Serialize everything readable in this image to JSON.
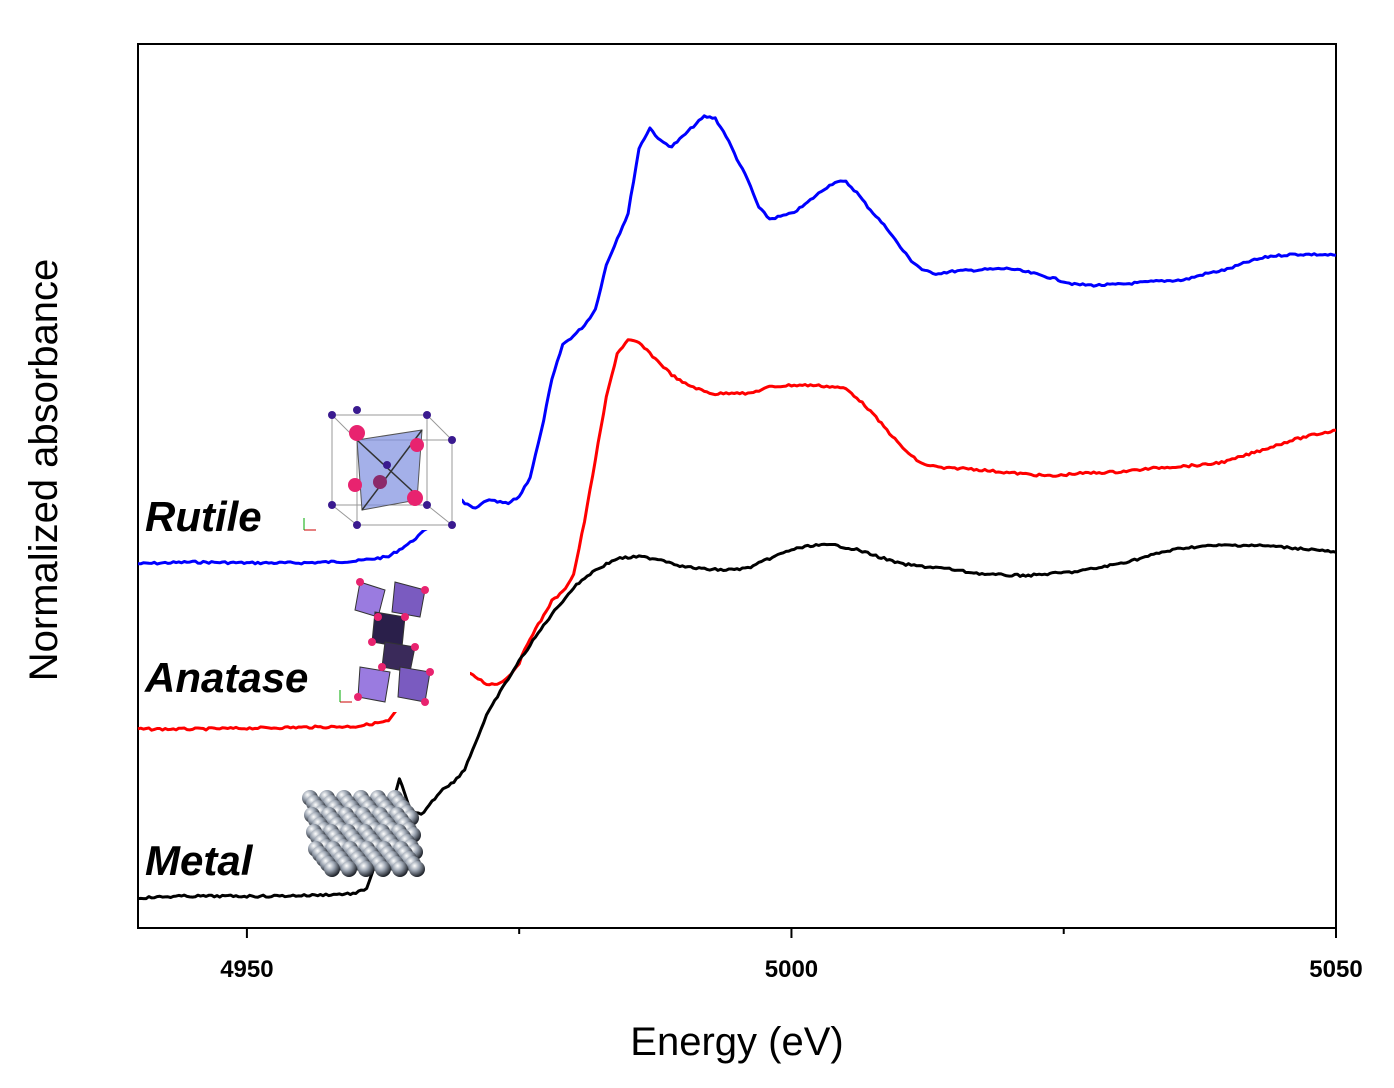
{
  "chart_data": {
    "type": "line",
    "xlabel": "Energy (eV)",
    "ylabel": "Normalized absorbance",
    "xlim": [
      4940,
      5050
    ],
    "ylim": [
      0,
      1
    ],
    "x_ticks_major": [
      4950,
      5000,
      5050
    ],
    "x_tick_labels": [
      "4950",
      "5000",
      "5050"
    ],
    "x_ticks_minor": [
      4975,
      5025
    ],
    "y_ticks": [],
    "grid": false,
    "series": [
      {
        "name": "Rutile",
        "color": "#0000ff",
        "points": [
          [
            4940,
            0.412
          ],
          [
            4945,
            0.414
          ],
          [
            4950,
            0.413
          ],
          [
            4955,
            0.413
          ],
          [
            4960,
            0.415
          ],
          [
            4963,
            0.42
          ],
          [
            4965,
            0.436
          ],
          [
            4966,
            0.446
          ],
          [
            4968,
            0.47
          ],
          [
            4969,
            0.492
          ],
          [
            4970,
            0.48
          ],
          [
            4971,
            0.474
          ],
          [
            4972,
            0.484
          ],
          [
            4974,
            0.48
          ],
          [
            4975,
            0.488
          ],
          [
            4976,
            0.51
          ],
          [
            4977,
            0.56
          ],
          [
            4978,
            0.62
          ],
          [
            4979,
            0.66
          ],
          [
            4980,
            0.67
          ],
          [
            4981,
            0.682
          ],
          [
            4982,
            0.7
          ],
          [
            4983,
            0.75
          ],
          [
            4984,
            0.78
          ],
          [
            4985,
            0.808
          ],
          [
            4986,
            0.882
          ],
          [
            4987,
            0.905
          ],
          [
            4988,
            0.89
          ],
          [
            4989,
            0.884
          ],
          [
            4990,
            0.895
          ],
          [
            4991,
            0.907
          ],
          [
            4992,
            0.918
          ],
          [
            4993,
            0.916
          ],
          [
            4994,
            0.896
          ],
          [
            4995,
            0.87
          ],
          [
            4996,
            0.846
          ],
          [
            4997,
            0.815
          ],
          [
            4998,
            0.802
          ],
          [
            4999,
            0.805
          ],
          [
            5000,
            0.808
          ],
          [
            5001,
            0.816
          ],
          [
            5002,
            0.826
          ],
          [
            5003,
            0.836
          ],
          [
            5004,
            0.844
          ],
          [
            5005,
            0.844
          ],
          [
            5006,
            0.832
          ],
          [
            5007,
            0.816
          ],
          [
            5008,
            0.802
          ],
          [
            5009,
            0.788
          ],
          [
            5010,
            0.77
          ],
          [
            5011,
            0.755
          ],
          [
            5012,
            0.745
          ],
          [
            5013,
            0.74
          ],
          [
            5015,
            0.743
          ],
          [
            5018,
            0.745
          ],
          [
            5020,
            0.746
          ],
          [
            5022,
            0.741
          ],
          [
            5024,
            0.735
          ],
          [
            5026,
            0.728
          ],
          [
            5028,
            0.727
          ],
          [
            5030,
            0.728
          ],
          [
            5034,
            0.732
          ],
          [
            5036,
            0.733
          ],
          [
            5038,
            0.74
          ],
          [
            5040,
            0.745
          ],
          [
            5042,
            0.754
          ],
          [
            5044,
            0.76
          ],
          [
            5046,
            0.762
          ],
          [
            5048,
            0.762
          ],
          [
            5050,
            0.761
          ]
        ]
      },
      {
        "name": "Anatase",
        "color": "#ff0000",
        "points": [
          [
            4940,
            0.225
          ],
          [
            4945,
            0.225
          ],
          [
            4950,
            0.226
          ],
          [
            4955,
            0.227
          ],
          [
            4960,
            0.228
          ],
          [
            4963,
            0.234
          ],
          [
            4964,
            0.25
          ],
          [
            4965,
            0.258
          ],
          [
            4966,
            0.254
          ],
          [
            4967,
            0.266
          ],
          [
            4968,
            0.282
          ],
          [
            4969,
            0.283
          ],
          [
            4970,
            0.29
          ],
          [
            4971,
            0.284
          ],
          [
            4972,
            0.276
          ],
          [
            4973,
            0.276
          ],
          [
            4974,
            0.284
          ],
          [
            4975,
            0.3
          ],
          [
            4976,
            0.328
          ],
          [
            4977,
            0.348
          ],
          [
            4978,
            0.37
          ],
          [
            4979,
            0.38
          ],
          [
            4980,
            0.4
          ],
          [
            4981,
            0.46
          ],
          [
            4982,
            0.53
          ],
          [
            4983,
            0.6
          ],
          [
            4984,
            0.65
          ],
          [
            4985,
            0.665
          ],
          [
            4986,
            0.662
          ],
          [
            4987,
            0.65
          ],
          [
            4988,
            0.638
          ],
          [
            4989,
            0.626
          ],
          [
            4990,
            0.617
          ],
          [
            4991,
            0.612
          ],
          [
            4992,
            0.607
          ],
          [
            4993,
            0.604
          ],
          [
            4994,
            0.605
          ],
          [
            4995,
            0.606
          ],
          [
            4996,
            0.604
          ],
          [
            4997,
            0.608
          ],
          [
            4998,
            0.612
          ],
          [
            5000,
            0.614
          ],
          [
            5002,
            0.614
          ],
          [
            5004,
            0.612
          ],
          [
            5005,
            0.61
          ],
          [
            5006,
            0.6
          ],
          [
            5007,
            0.588
          ],
          [
            5008,
            0.574
          ],
          [
            5009,
            0.56
          ],
          [
            5010,
            0.546
          ],
          [
            5011,
            0.534
          ],
          [
            5012,
            0.525
          ],
          [
            5014,
            0.52
          ],
          [
            5016,
            0.52
          ],
          [
            5020,
            0.515
          ],
          [
            5024,
            0.511
          ],
          [
            5026,
            0.514
          ],
          [
            5030,
            0.516
          ],
          [
            5034,
            0.521
          ],
          [
            5038,
            0.524
          ],
          [
            5040,
            0.528
          ],
          [
            5042,
            0.536
          ],
          [
            5044,
            0.544
          ],
          [
            5046,
            0.552
          ],
          [
            5048,
            0.558
          ],
          [
            5050,
            0.563
          ]
        ]
      },
      {
        "name": "Metal",
        "color": "#000000",
        "points": [
          [
            4940,
            0.034
          ],
          [
            4944,
            0.036
          ],
          [
            4948,
            0.036
          ],
          [
            4952,
            0.036
          ],
          [
            4956,
            0.037
          ],
          [
            4960,
            0.039
          ],
          [
            4961,
            0.045
          ],
          [
            4962,
            0.08
          ],
          [
            4963,
            0.12
          ],
          [
            4964,
            0.17
          ],
          [
            4965,
            0.132
          ],
          [
            4966,
            0.128
          ],
          [
            4967,
            0.143
          ],
          [
            4968,
            0.158
          ],
          [
            4969,
            0.165
          ],
          [
            4970,
            0.18
          ],
          [
            4971,
            0.21
          ],
          [
            4972,
            0.24
          ],
          [
            4973,
            0.262
          ],
          [
            4974,
            0.282
          ],
          [
            4975,
            0.302
          ],
          [
            4976,
            0.32
          ],
          [
            4977,
            0.338
          ],
          [
            4978,
            0.355
          ],
          [
            4979,
            0.37
          ],
          [
            4980,
            0.385
          ],
          [
            4981,
            0.396
          ],
          [
            4982,
            0.405
          ],
          [
            4984,
            0.418
          ],
          [
            4986,
            0.42
          ],
          [
            4988,
            0.417
          ],
          [
            4990,
            0.409
          ],
          [
            4992,
            0.406
          ],
          [
            4994,
            0.405
          ],
          [
            4996,
            0.407
          ],
          [
            4998,
            0.418
          ],
          [
            5000,
            0.428
          ],
          [
            5002,
            0.433
          ],
          [
            5004,
            0.433
          ],
          [
            5006,
            0.428
          ],
          [
            5008,
            0.42
          ],
          [
            5010,
            0.412
          ],
          [
            5012,
            0.409
          ],
          [
            5014,
            0.407
          ],
          [
            5016,
            0.403
          ],
          [
            5018,
            0.4
          ],
          [
            5020,
            0.399
          ],
          [
            5022,
            0.399
          ],
          [
            5024,
            0.401
          ],
          [
            5026,
            0.403
          ],
          [
            5028,
            0.407
          ],
          [
            5030,
            0.412
          ],
          [
            5032,
            0.418
          ],
          [
            5034,
            0.425
          ],
          [
            5036,
            0.43
          ],
          [
            5038,
            0.432
          ],
          [
            5040,
            0.433
          ],
          [
            5042,
            0.433
          ],
          [
            5044,
            0.432
          ],
          [
            5046,
            0.43
          ],
          [
            5048,
            0.428
          ],
          [
            5050,
            0.425
          ]
        ]
      }
    ],
    "annotations": [
      {
        "text": "Rutile",
        "x": 4940.5,
        "y": 0.45,
        "style": "bold italic"
      },
      {
        "text": "Anatase",
        "x": 4940.5,
        "y": 0.265,
        "style": "bold italic"
      },
      {
        "text": "Metal",
        "x": 4940.5,
        "y": 0.066,
        "style": "bold italic"
      }
    ],
    "insets": [
      {
        "name": "rutile-structure",
        "near": "Rutile"
      },
      {
        "name": "anatase-structure",
        "near": "Anatase"
      },
      {
        "name": "metal-lattice",
        "near": "Metal"
      }
    ]
  }
}
